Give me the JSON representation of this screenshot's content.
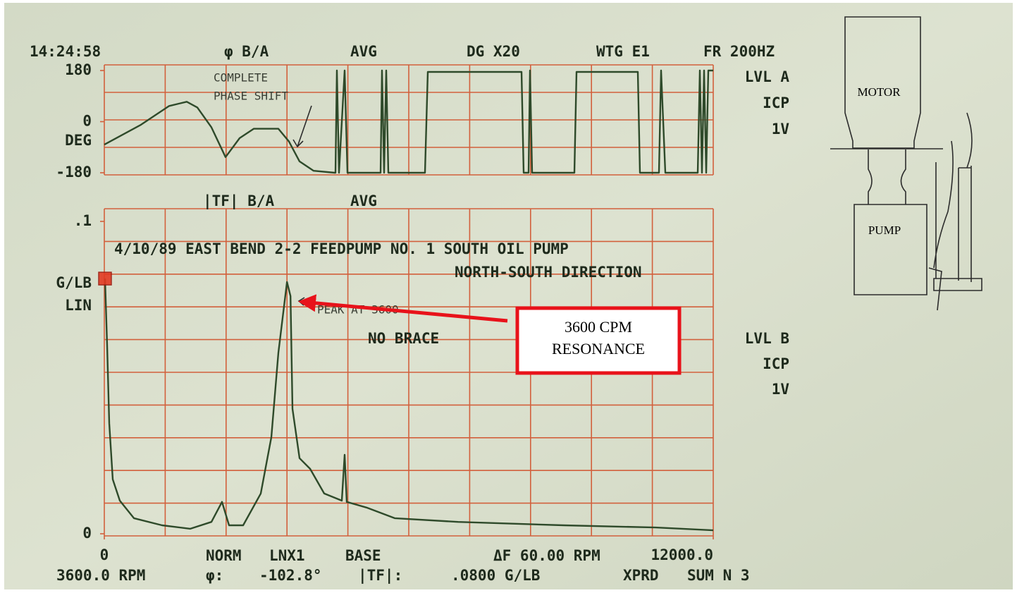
{
  "chart_data": [
    {
      "type": "line",
      "header": [
        "14:24:58",
        "φ B/A",
        "AVG",
        "DG X20",
        "WTG E1",
        "FR 200HZ"
      ],
      "ylabel": "DEG",
      "side_labels": [
        "LVL A",
        "ICP",
        "1V"
      ],
      "annotation": [
        "COMPLETE",
        "PHASE SHIFT"
      ],
      "xlim": [
        0,
        12000
      ],
      "ylim": [
        -180,
        180
      ],
      "yticks": [
        180,
        0,
        -180
      ],
      "color": "#2e4a2a",
      "x": [
        0,
        722,
        1278,
        1625,
        1833,
        2111,
        2389,
        2667,
        2944,
        3431,
        3639,
        3847,
        4125,
        4542,
        4556,
        4583,
        4625,
        4736,
        4792,
        5444,
        5472,
        5514,
        5556,
        5597,
        6319,
        6375,
        8222,
        8264,
        8361,
        8389,
        8431,
        9264,
        9306,
        10514,
        10556,
        10931,
        10972,
        11056,
        11694,
        11736,
        11778,
        11819,
        11861,
        11903,
        12000
      ],
      "values": [
        -81,
        -11,
        55,
        70,
        50,
        -20,
        -125,
        -58,
        -25,
        -25,
        -70,
        -140,
        -173,
        -180,
        -180,
        180,
        -180,
        180,
        -180,
        -180,
        180,
        -180,
        180,
        -180,
        -180,
        175,
        175,
        -180,
        -180,
        180,
        -180,
        -180,
        175,
        175,
        -180,
        -180,
        180,
        -180,
        -180,
        180,
        -180,
        180,
        -180,
        180,
        180
      ]
    },
    {
      "type": "line",
      "header": [
        "|TF| B/A",
        "AVG"
      ],
      "title": "4/10/89 EAST BEND  2-2 FEEDPUMP  NO. 1  SOUTH OIL PUMP",
      "subtitle": "NORTH-SOUTH DIRECTION",
      "ylabel": [
        "G/LB",
        "LIN"
      ],
      "side_labels": [
        "LVL B",
        "ICP",
        "1V"
      ],
      "annotations": [
        "PEAK AT 3600",
        "NO BRACE"
      ],
      "xlim": [
        0,
        12000
      ],
      "ylim": [
        0,
        0.1
      ],
      "xticks": [
        0,
        {
          "value": 12000,
          "label": "12000.0"
        }
      ],
      "yticks": [
        {
          "value": 0.1,
          "label": ".1"
        },
        0
      ],
      "color": "#2e4a2a",
      "x": [
        14,
        56,
        97,
        167,
        306,
        583,
        1139,
        1694,
        2111,
        2319,
        2458,
        2736,
        3083,
        3292,
        3431,
        3600,
        3670,
        3708,
        3847,
        4056,
        4333,
        4681,
        4736,
        4778,
        5167,
        5722,
        6972,
        9056,
        10861,
        12000
      ],
      "values": [
        0.0817,
        0.0603,
        0.0354,
        0.0174,
        0.0106,
        0.005,
        0.0027,
        0.0016,
        0.0038,
        0.0102,
        0.0027,
        0.0027,
        0.0129,
        0.0309,
        0.058,
        0.0806,
        0.0761,
        0.04,
        0.0242,
        0.0208,
        0.0129,
        0.0106,
        0.0253,
        0.0102,
        0.0084,
        0.005,
        0.0038,
        0.0027,
        0.002,
        0.0011
      ]
    }
  ],
  "footer": {
    "row1": [
      "NORM",
      "LNX1",
      "BASE",
      "ΔF 60.00 RPM"
    ],
    "row2": [
      "3600.0 RPM",
      "φ:",
      "-102.8°",
      "|TF|:",
      ".0800 G/LB",
      "XPRD",
      "SUM N 3"
    ]
  },
  "callout": [
    "3600 CPM",
    "RESONANCE"
  ],
  "diagram": {
    "motor": "MOTOR",
    "pump": "PUMP"
  }
}
